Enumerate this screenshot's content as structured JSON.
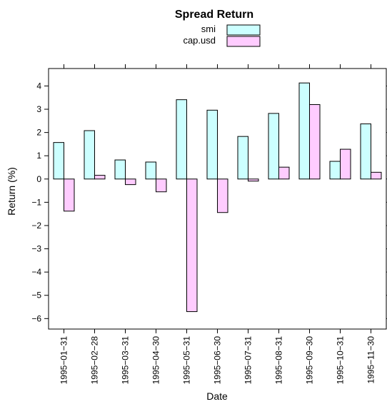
{
  "chart_data": {
    "type": "bar",
    "title": "Spread Return",
    "xlabel": "Date",
    "ylabel": "Return (%)",
    "categories": [
      "1995−01−31",
      "1995−02−28",
      "1995−03−31",
      "1995−04−30",
      "1995−05−31",
      "1995−06−30",
      "1995−07−31",
      "1995−08−31",
      "1995−09−30",
      "1995−10−31",
      "1995−11−30"
    ],
    "series": [
      {
        "name": "smi",
        "color": "#ccffff",
        "values": [
          1.57,
          2.08,
          0.82,
          0.73,
          3.41,
          2.96,
          1.83,
          2.82,
          4.13,
          0.76,
          2.37
        ]
      },
      {
        "name": "cap.usd",
        "color": "#ffccff",
        "values": [
          -1.38,
          0.16,
          -0.24,
          -0.55,
          -5.7,
          -1.44,
          -0.09,
          0.51,
          3.2,
          1.28,
          0.29
        ]
      }
    ],
    "ylim": [
      -6.45,
      4.75
    ],
    "yticks": [
      4,
      3,
      2,
      1,
      0,
      -1,
      -2,
      -3,
      -4,
      -5,
      -6
    ],
    "ytick_labels": [
      "4",
      "3",
      "2",
      "1",
      "0",
      "−1",
      "−2",
      "−3",
      "−4",
      "−5",
      "−6"
    ],
    "legend_position": "top",
    "grid": false,
    "bar_border_color": "#000000"
  }
}
